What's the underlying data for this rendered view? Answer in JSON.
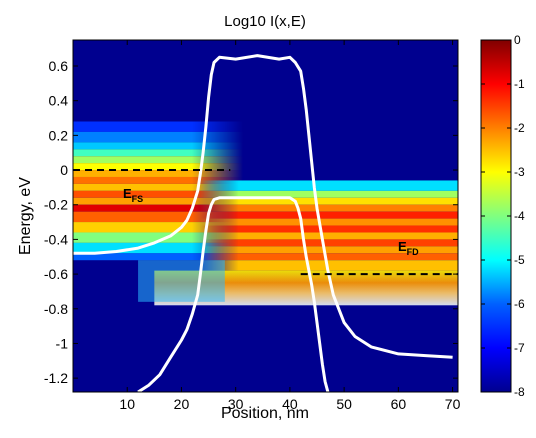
{
  "chart_data": {
    "type": "heatmap",
    "title": "Log10 I(x,E)",
    "xlabel": "Position, nm",
    "ylabel": "Energy, eV",
    "xlim": [
      0,
      71
    ],
    "ylim": [
      -1.28,
      0.75
    ],
    "xticks": [
      10,
      20,
      30,
      40,
      50,
      60,
      70
    ],
    "xtick_labels": [
      "10",
      "20",
      "30",
      "40",
      "50",
      "60",
      "70"
    ],
    "yticks": [
      0.6,
      0.4,
      0.2,
      0,
      -0.2,
      -0.4,
      -0.6,
      -0.8,
      -1,
      -1.2
    ],
    "ytick_labels": [
      "0.6",
      "0.4",
      "0.2",
      "0",
      "-0.2",
      "-0.4",
      "-0.6",
      "-0.8",
      "-1",
      "-1.2"
    ],
    "colorbar": {
      "min": -8,
      "max": 0,
      "ticks": [
        0,
        -1,
        -2,
        -3,
        -4,
        -5,
        -6,
        -7,
        -8
      ],
      "tick_labels": [
        "0",
        "-1",
        "-2",
        "-3",
        "-4",
        "-5",
        "-6",
        "-7",
        "-8"
      ],
      "colormap": "jet"
    },
    "grid": false,
    "series": [
      {
        "style": "white-solid",
        "x": [
          0,
          4,
          8,
          12,
          15,
          18,
          20,
          21,
          22,
          23,
          23.5,
          24,
          24.5,
          25,
          25.5,
          26,
          27,
          30,
          34,
          38,
          40,
          41,
          42,
          42.5,
          43,
          43.5,
          44,
          44.5,
          45,
          46,
          47,
          48,
          50,
          52,
          55,
          60,
          65,
          70
        ],
        "y": [
          -0.48,
          -0.48,
          -0.47,
          -0.45,
          -0.42,
          -0.38,
          -0.33,
          -0.29,
          -0.22,
          -0.12,
          -0.02,
          0.1,
          0.25,
          0.42,
          0.55,
          0.62,
          0.65,
          0.64,
          0.66,
          0.64,
          0.65,
          0.62,
          0.57,
          0.47,
          0.35,
          0.2,
          0.05,
          -0.1,
          -0.22,
          -0.4,
          -0.58,
          -0.72,
          -0.88,
          -0.96,
          -1.02,
          -1.06,
          -1.07,
          -1.08
        ]
      },
      {
        "style": "white-solid",
        "x": [
          12,
          14,
          16,
          18,
          20,
          21,
          22,
          23,
          23.5,
          24,
          24.5,
          25,
          25.5,
          26,
          27,
          30,
          34,
          38,
          40,
          41,
          41.5,
          42,
          42.5,
          43,
          43.5,
          44,
          44.5,
          45,
          45.5,
          46,
          46.5,
          47
        ],
        "y": [
          -1.28,
          -1.24,
          -1.18,
          -1.08,
          -0.98,
          -0.92,
          -0.83,
          -0.72,
          -0.6,
          -0.47,
          -0.35,
          -0.25,
          -0.2,
          -0.17,
          -0.16,
          -0.16,
          -0.16,
          -0.16,
          -0.16,
          -0.18,
          -0.22,
          -0.28,
          -0.4,
          -0.5,
          -0.58,
          -0.66,
          -0.76,
          -0.88,
          -1.0,
          -1.12,
          -1.22,
          -1.28
        ]
      },
      {
        "style": "black-dashed",
        "x": [
          0,
          29
        ],
        "y": [
          0,
          0
        ]
      },
      {
        "style": "black-dashed",
        "x": [
          42,
          71
        ],
        "y": [
          -0.6,
          -0.6
        ]
      }
    ],
    "annotations": [
      {
        "main": "E",
        "sub": "FS",
        "x": 9,
        "y": -0.16
      },
      {
        "main": "E",
        "sub": "FD",
        "x": 57.5,
        "y": -0.47
      }
    ]
  }
}
